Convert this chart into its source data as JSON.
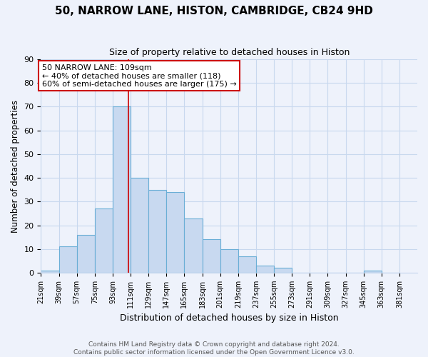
{
  "title": "50, NARROW LANE, HISTON, CAMBRIDGE, CB24 9HD",
  "subtitle": "Size of property relative to detached houses in Histon",
  "xlabel": "Distribution of detached houses by size in Histon",
  "ylabel": "Number of detached properties",
  "bin_starts": [
    21,
    39,
    57,
    75,
    93,
    111,
    129,
    147,
    165,
    183,
    201,
    219,
    237,
    255,
    273,
    291,
    309,
    327,
    345,
    363
  ],
  "bin_width": 18,
  "counts": [
    1,
    11,
    16,
    27,
    70,
    40,
    35,
    34,
    23,
    14,
    10,
    7,
    3,
    2,
    0,
    0,
    0,
    0,
    1,
    0
  ],
  "tick_labels": [
    "21sqm",
    "39sqm",
    "57sqm",
    "75sqm",
    "93sqm",
    "111sqm",
    "129sqm",
    "147sqm",
    "165sqm",
    "183sqm",
    "201sqm",
    "219sqm",
    "237sqm",
    "255sqm",
    "273sqm",
    "291sqm",
    "309sqm",
    "327sqm",
    "345sqm",
    "363sqm",
    "381sqm"
  ],
  "bar_color": "#c8d9f0",
  "bar_edge_color": "#6aaed6",
  "grid_color": "#c8d8ee",
  "background_color": "#eef2fb",
  "property_line_x": 109,
  "property_line_color": "#cc0000",
  "annotation_text": "50 NARROW LANE: 109sqm\n← 40% of detached houses are smaller (118)\n60% of semi-detached houses are larger (175) →",
  "annotation_box_color": "#ffffff",
  "annotation_box_edge": "#cc0000",
  "ylim": [
    0,
    90
  ],
  "yticks": [
    0,
    10,
    20,
    30,
    40,
    50,
    60,
    70,
    80,
    90
  ],
  "xlim_left": 21,
  "xlim_right": 399,
  "footer_line1": "Contains HM Land Registry data © Crown copyright and database right 2024.",
  "footer_line2": "Contains public sector information licensed under the Open Government Licence v3.0."
}
